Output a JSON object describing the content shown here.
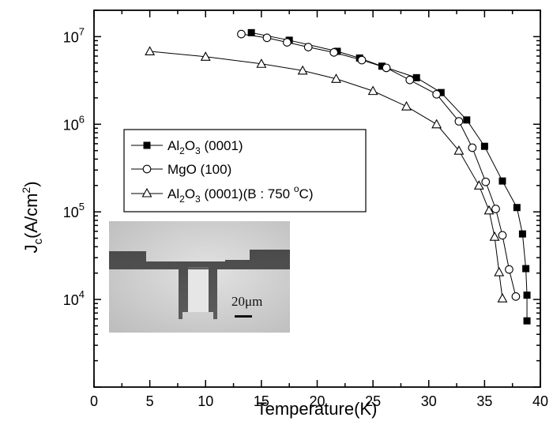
{
  "chart_data": {
    "type": "scatter",
    "xlabel": "Temperature(K)",
    "ylabel": {
      "main": "J",
      "sub": "c",
      "unit_pre": "(A/cm",
      "unit_sup": "2",
      "unit_post": ")"
    },
    "xlim": [
      0,
      40
    ],
    "ylim": [
      1000,
      20000000
    ],
    "y_scale": "log",
    "x_ticks": [
      0,
      5,
      10,
      15,
      20,
      25,
      30,
      35,
      40
    ],
    "y_tick_labels": [
      {
        "value": 10000,
        "base": "10",
        "exp": "4"
      },
      {
        "value": 100000,
        "base": "10",
        "exp": "5"
      },
      {
        "value": 1000000,
        "base": "10",
        "exp": "6"
      },
      {
        "value": 10000000,
        "base": "10",
        "exp": "7"
      }
    ],
    "legend_position": "left-center",
    "series": [
      {
        "name": "Al2O3 (0001)",
        "marker": "filled-square",
        "legend_label": {
          "a": "Al",
          "sub1": "2",
          "b": "O",
          "sub2": "3",
          "c": " (0001)"
        },
        "points": [
          [
            14.1,
            11100000
          ],
          [
            17.5,
            9100000
          ],
          [
            21.8,
            6800000
          ],
          [
            23.8,
            5700000
          ],
          [
            25.8,
            4600000
          ],
          [
            28.9,
            3400000
          ],
          [
            31.1,
            2300000
          ],
          [
            33.4,
            1120000
          ],
          [
            35.0,
            560000
          ],
          [
            36.6,
            225000
          ],
          [
            37.9,
            112000
          ],
          [
            38.4,
            56000
          ],
          [
            38.7,
            22500
          ],
          [
            38.8,
            11200
          ],
          [
            38.8,
            5700
          ]
        ]
      },
      {
        "name": "MgO (100)",
        "marker": "open-circle",
        "legend_label": {
          "a": "MgO (100)",
          "sub1": "",
          "b": "",
          "sub2": "",
          "c": ""
        },
        "points": [
          [
            13.2,
            10700000
          ],
          [
            15.5,
            9700000
          ],
          [
            17.3,
            8600000
          ],
          [
            19.2,
            7600000
          ],
          [
            21.5,
            6600000
          ],
          [
            24.0,
            5400000
          ],
          [
            26.2,
            4400000
          ],
          [
            28.3,
            3200000
          ],
          [
            30.7,
            2200000
          ],
          [
            32.7,
            1080000
          ],
          [
            33.9,
            540000
          ],
          [
            35.1,
            220000
          ],
          [
            36.0,
            108000
          ],
          [
            36.6,
            54000
          ],
          [
            37.2,
            22000
          ],
          [
            37.8,
            10800
          ]
        ]
      },
      {
        "name": "Al2O3 (0001)(B : 750 °C)",
        "marker": "open-triangle",
        "legend_label": {
          "a": "Al",
          "sub1": "2",
          "b": "O",
          "sub2": "3",
          "c": " (0001)(B : 750 ",
          "deg": "o",
          "d": "C)"
        },
        "points": [
          [
            5.0,
            6800000
          ],
          [
            10.0,
            5900000
          ],
          [
            15.0,
            4900000
          ],
          [
            18.7,
            4100000
          ],
          [
            21.7,
            3300000
          ],
          [
            25.0,
            2400000
          ],
          [
            28.0,
            1600000
          ],
          [
            30.7,
            1000000
          ],
          [
            32.7,
            500000
          ],
          [
            34.5,
            200000
          ],
          [
            35.4,
            104000
          ],
          [
            35.9,
            52000
          ],
          [
            36.3,
            20500
          ],
          [
            36.6,
            10300
          ]
        ]
      }
    ]
  },
  "inset": {
    "scale_label": "20μm"
  }
}
